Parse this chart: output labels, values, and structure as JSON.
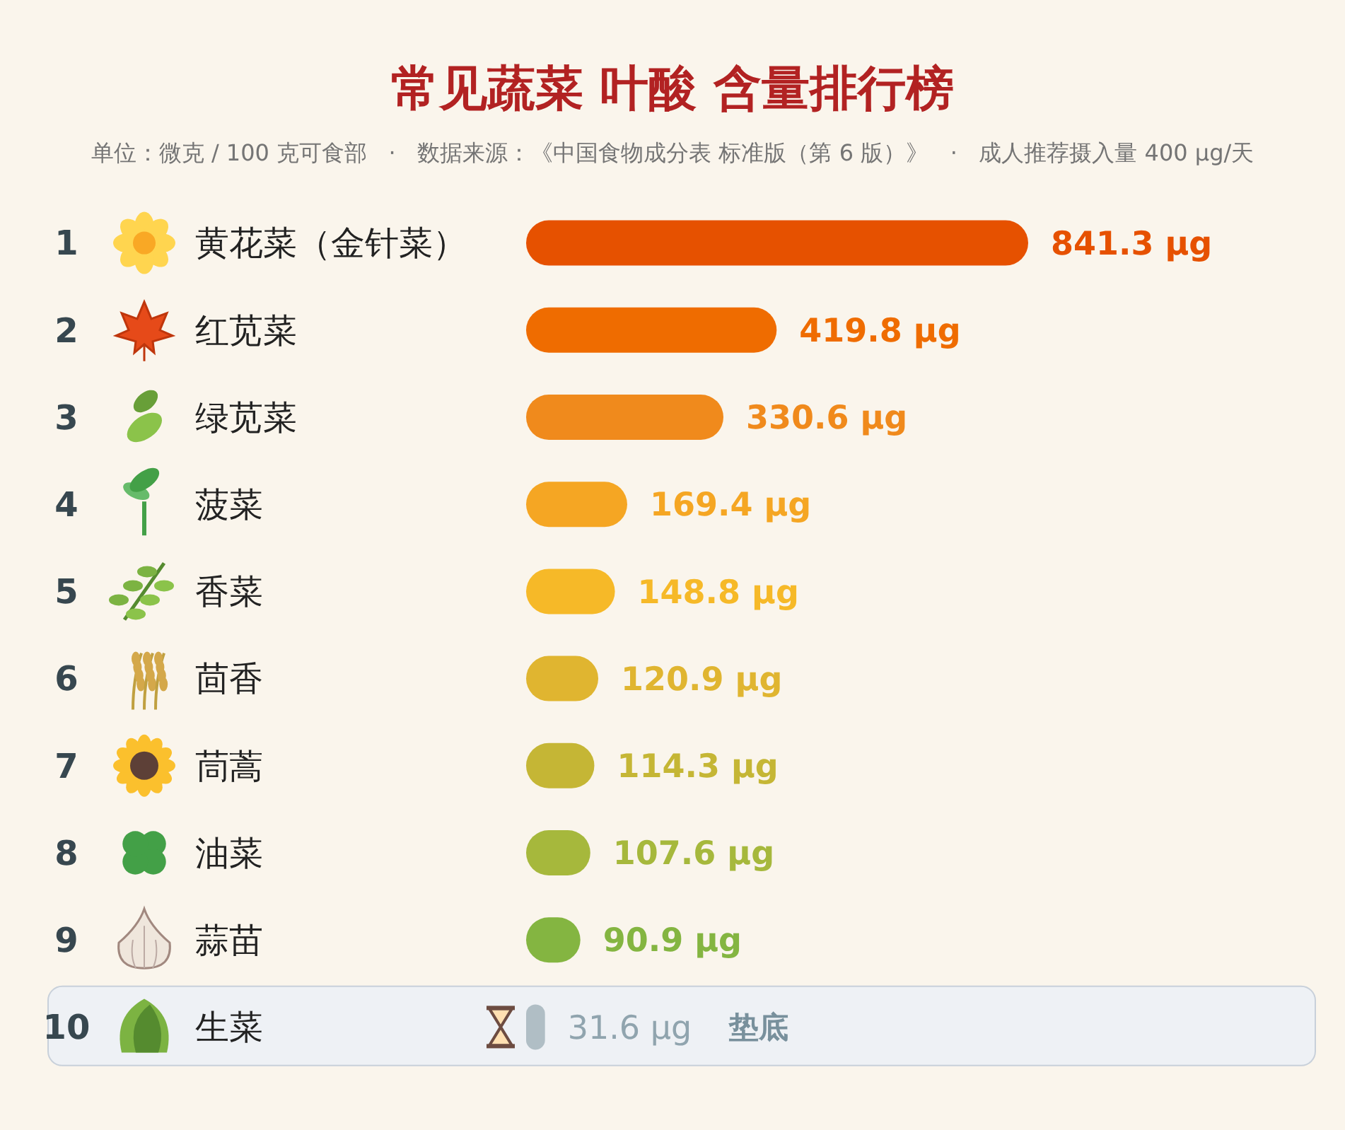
{
  "chart_data": {
    "type": "bar",
    "orientation": "horizontal",
    "title": "常见蔬菜 叶酸 含量排行榜",
    "subtitle": "单位：微克 / 100 克可食部   ·   数据来源：《中国食物成分表 标准版（第 6 版）》   ·   成人推荐摄入量 400 μg/天",
    "categories": [
      "黄花菜（金针菜）",
      "红苋菜",
      "绿苋菜",
      "菠菜",
      "香菜",
      "茴香",
      "茼蒿",
      "油菜",
      "蒜苗",
      "生菜"
    ],
    "values": [
      841.3,
      419.8,
      330.6,
      169.4,
      148.8,
      120.9,
      114.3,
      107.6,
      90.9,
      31.6
    ],
    "colors": [
      "#e65100",
      "#ef6c00",
      "#f08a1c",
      "#f5a623",
      "#f6b928",
      "#e0b530",
      "#c5b635",
      "#a6b83c",
      "#84b541",
      "#b0bec5"
    ],
    "value_labels": [
      "841.3 μg",
      "419.8 μg",
      "330.6 μg",
      "169.4 μg",
      "148.8 μg",
      "120.9 μg",
      "114.3 μg",
      "107.6 μg",
      "90.9 μg",
      "31.6 μg"
    ],
    "annotations": [
      "1",
      "2",
      "3",
      "4",
      "5",
      "6",
      "7",
      "8",
      "9",
      "10",
      "垫底"
    ]
  }
}
